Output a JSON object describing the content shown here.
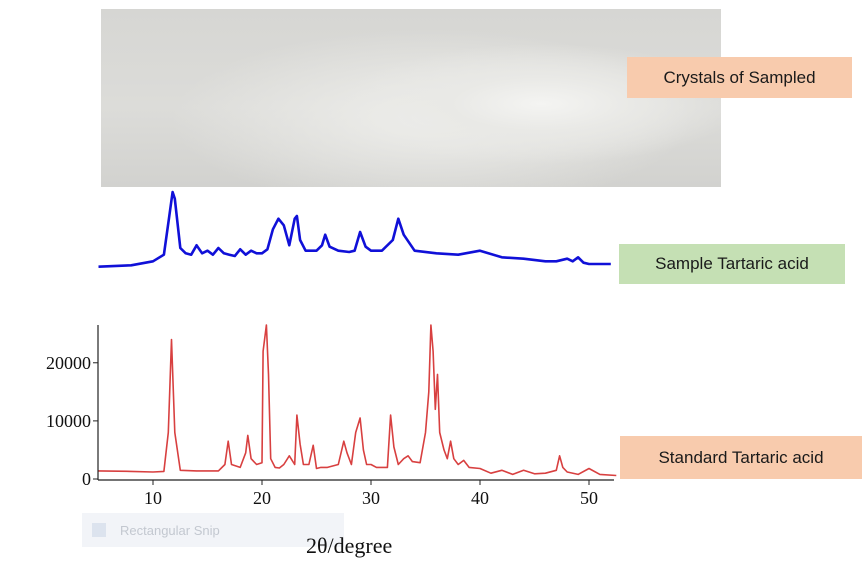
{
  "labels": {
    "crystals": "Crystals of Sampled",
    "sample": "Sample Tartaric acid",
    "standard": "Standard Tartaric acid",
    "snip": "Rectangular Snip"
  },
  "colors": {
    "sample_line": "#1010d8",
    "standard_line": "#d84040",
    "crystals_box": "#f8cbad",
    "sample_box": "#c5e0b4",
    "standard_box": "#f8cbad"
  },
  "chart_data": [
    {
      "type": "line",
      "series": [
        {
          "x": [
            5,
            8,
            10,
            11,
            11.5,
            11.8,
            12,
            12.5,
            13,
            13.5,
            14,
            14.5,
            15,
            15.5,
            16,
            16.5,
            17,
            17.5,
            18,
            18.5,
            19,
            19.5,
            20,
            20.5,
            21,
            21.5,
            22,
            22.5,
            23,
            23.2,
            23.5,
            24,
            25,
            25.5,
            25.8,
            26.2,
            27,
            28,
            28.5,
            29,
            29.5,
            30,
            31,
            32,
            32.5,
            33,
            34,
            36,
            38,
            40,
            42,
            44,
            46,
            47,
            48,
            48.5,
            49,
            49.5,
            50,
            52
          ],
          "y": [
            4,
            5,
            8,
            13,
            42,
            60,
            55,
            18,
            14,
            13,
            20,
            14,
            16,
            13,
            18,
            14,
            13,
            12,
            17,
            13,
            16,
            14,
            14,
            17,
            32,
            40,
            35,
            20,
            40,
            42,
            24,
            16,
            16,
            20,
            28,
            19,
            16,
            15,
            16,
            30,
            19,
            16,
            16,
            24,
            40,
            28,
            16,
            14,
            13,
            16,
            11,
            10,
            8,
            8,
            10,
            8,
            11,
            7,
            6,
            6
          ]
        }
      ],
      "xlim": [
        5,
        52.5
      ],
      "ylim": [
        0,
        60
      ]
    },
    {
      "type": "line",
      "series": [
        {
          "x": [
            5,
            8,
            10,
            11,
            11.4,
            11.7,
            12,
            12.5,
            14,
            16,
            16.6,
            16.9,
            17.2,
            18,
            18.5,
            18.7,
            19,
            19.5,
            20,
            20.1,
            20.4,
            20.6,
            20.8,
            21.2,
            21.6,
            22,
            22.5,
            23,
            23.2,
            23.5,
            23.8,
            24.3,
            24.7,
            25,
            25.4,
            26,
            27,
            27.5,
            27.8,
            28.2,
            28.6,
            29,
            29.3,
            29.6,
            30,
            30.5,
            31,
            31.5,
            31.8,
            32.1,
            32.5,
            33,
            33.4,
            33.8,
            34.5,
            35,
            35.3,
            35.5,
            35.7,
            35.9,
            36.1,
            36.3,
            36.7,
            37,
            37.3,
            37.6,
            38,
            38.5,
            39,
            40,
            41,
            42,
            43,
            44,
            45,
            46,
            47,
            47.3,
            47.6,
            48,
            49,
            50,
            51,
            52.5
          ],
          "y": [
            1400,
            1300,
            1200,
            1300,
            8000,
            24000,
            8000,
            1500,
            1400,
            1400,
            2500,
            6500,
            2500,
            2000,
            4500,
            7500,
            3500,
            2500,
            2800,
            22000,
            26500,
            18000,
            3500,
            2000,
            1900,
            2500,
            4000,
            2500,
            11000,
            6000,
            2500,
            2500,
            5800,
            1800,
            2000,
            2000,
            2500,
            6500,
            4500,
            2500,
            8000,
            10500,
            5000,
            2500,
            2500,
            2000,
            2000,
            2000,
            11000,
            5500,
            2500,
            3500,
            4000,
            3000,
            2800,
            8000,
            15000,
            26500,
            22000,
            12000,
            18000,
            8000,
            5000,
            3500,
            6500,
            3500,
            2500,
            3200,
            2000,
            1800,
            1000,
            1500,
            800,
            1500,
            900,
            1000,
            1500,
            4000,
            2000,
            1200,
            800,
            1800,
            800,
            600
          ]
        }
      ],
      "xticks": [
        10,
        20,
        30,
        40,
        50
      ],
      "yticks": [
        0,
        10000,
        20000
      ],
      "ytick_labels": [
        "0",
        "10000",
        "20000"
      ],
      "xlim": [
        5,
        52.5
      ],
      "ylim": [
        0,
        26500
      ],
      "xlabel": "2θ/degree"
    }
  ]
}
